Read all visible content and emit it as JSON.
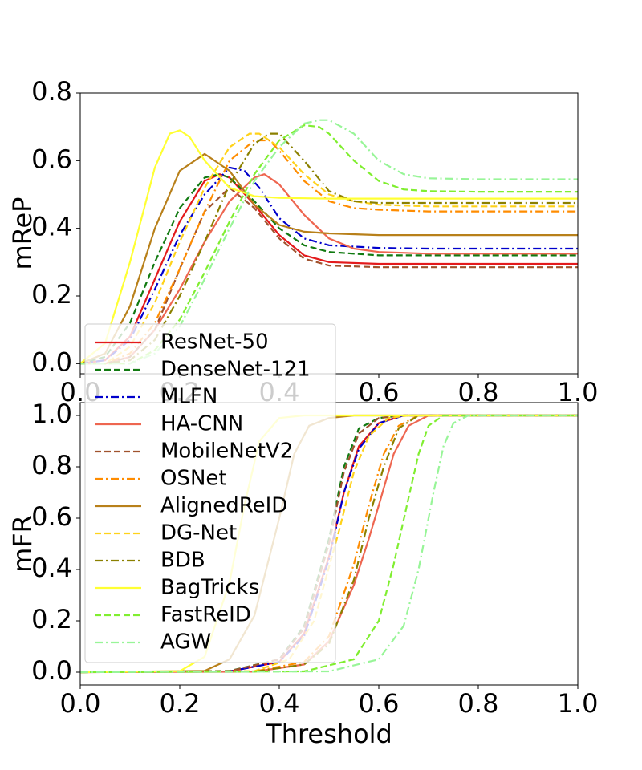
{
  "chart_data": [
    {
      "type": "line",
      "id": "top",
      "xlabel": "",
      "ylabel": "mReP",
      "xlim": [
        0.0,
        1.0
      ],
      "ylim": [
        -0.03,
        0.8
      ],
      "xticks": [
        "0.0",
        "0.2",
        "0.4",
        "0.6",
        "0.8",
        "1.0"
      ],
      "yticks": [
        "0.0",
        "0.2",
        "0.4",
        "0.6",
        "0.8"
      ],
      "legend": "lower-left",
      "series": [
        {
          "name": "ResNet-50",
          "color": "#e31a1c",
          "dash": "solid",
          "x": [
            0,
            0.05,
            0.1,
            0.15,
            0.2,
            0.25,
            0.28,
            0.3,
            0.35,
            0.4,
            0.45,
            0.5,
            0.6,
            0.7,
            1.0
          ],
          "y": [
            0,
            0.01,
            0.08,
            0.25,
            0.42,
            0.54,
            0.56,
            0.55,
            0.47,
            0.38,
            0.32,
            0.3,
            0.295,
            0.295,
            0.295
          ]
        },
        {
          "name": "DenseNet-121",
          "color": "#117a11",
          "dash": "dashed",
          "x": [
            0,
            0.05,
            0.1,
            0.15,
            0.2,
            0.25,
            0.28,
            0.3,
            0.35,
            0.4,
            0.45,
            0.5,
            0.6,
            0.7,
            1.0
          ],
          "y": [
            0,
            0.02,
            0.12,
            0.3,
            0.46,
            0.55,
            0.56,
            0.55,
            0.48,
            0.4,
            0.35,
            0.33,
            0.32,
            0.32,
            0.32
          ]
        },
        {
          "name": "MLFN",
          "color": "#0000cc",
          "dash": "dashdot",
          "x": [
            0,
            0.05,
            0.1,
            0.15,
            0.2,
            0.25,
            0.3,
            0.33,
            0.36,
            0.4,
            0.45,
            0.5,
            0.6,
            0.7,
            1.0
          ],
          "y": [
            0,
            0.01,
            0.07,
            0.22,
            0.38,
            0.5,
            0.58,
            0.57,
            0.52,
            0.43,
            0.37,
            0.35,
            0.342,
            0.34,
            0.34
          ]
        },
        {
          "name": "HA-CNN",
          "color": "#ee6650",
          "dash": "solid",
          "x": [
            0,
            0.05,
            0.1,
            0.15,
            0.2,
            0.25,
            0.3,
            0.35,
            0.37,
            0.4,
            0.45,
            0.5,
            0.55,
            0.6,
            0.7,
            1.0
          ],
          "y": [
            0,
            0.0,
            0.02,
            0.1,
            0.22,
            0.36,
            0.48,
            0.55,
            0.56,
            0.53,
            0.44,
            0.37,
            0.34,
            0.33,
            0.325,
            0.325
          ]
        },
        {
          "name": "MobileNetV2",
          "color": "#a0522d",
          "dash": "dashed",
          "x": [
            0,
            0.05,
            0.1,
            0.15,
            0.2,
            0.25,
            0.3,
            0.35,
            0.4,
            0.45,
            0.5,
            0.6,
            0.7,
            1.0
          ],
          "y": [
            0,
            0.0,
            0.02,
            0.1,
            0.28,
            0.45,
            0.52,
            0.46,
            0.37,
            0.31,
            0.29,
            0.285,
            0.285,
            0.285
          ]
        },
        {
          "name": "OSNet",
          "color": "#ff8c00",
          "dash": "dashdot",
          "x": [
            0,
            0.05,
            0.1,
            0.15,
            0.2,
            0.25,
            0.3,
            0.35,
            0.38,
            0.4,
            0.45,
            0.5,
            0.55,
            0.6,
            0.7,
            1.0
          ],
          "y": [
            0,
            0.0,
            0.03,
            0.12,
            0.28,
            0.45,
            0.6,
            0.66,
            0.66,
            0.63,
            0.54,
            0.48,
            0.46,
            0.455,
            0.45,
            0.45
          ]
        },
        {
          "name": "AlignedReID",
          "color": "#b8801a",
          "dash": "solid",
          "x": [
            0,
            0.05,
            0.1,
            0.15,
            0.2,
            0.25,
            0.3,
            0.35,
            0.4,
            0.45,
            0.5,
            0.6,
            0.7,
            1.0
          ],
          "y": [
            0,
            0.03,
            0.17,
            0.4,
            0.57,
            0.62,
            0.57,
            0.47,
            0.41,
            0.39,
            0.385,
            0.38,
            0.38,
            0.38
          ]
        },
        {
          "name": "DG-Net",
          "color": "#ffd21a",
          "dash": "dashed",
          "x": [
            0,
            0.05,
            0.1,
            0.15,
            0.2,
            0.25,
            0.3,
            0.34,
            0.36,
            0.4,
            0.45,
            0.5,
            0.55,
            0.6,
            0.7,
            1.0
          ],
          "y": [
            0,
            0.0,
            0.05,
            0.18,
            0.36,
            0.52,
            0.64,
            0.68,
            0.68,
            0.64,
            0.56,
            0.5,
            0.48,
            0.47,
            0.465,
            0.465
          ]
        },
        {
          "name": "BDB",
          "color": "#8b8000",
          "dash": "dashdot",
          "x": [
            0,
            0.05,
            0.1,
            0.15,
            0.2,
            0.25,
            0.3,
            0.35,
            0.38,
            0.4,
            0.45,
            0.5,
            0.55,
            0.6,
            0.7,
            1.0
          ],
          "y": [
            0,
            0.0,
            0.01,
            0.07,
            0.2,
            0.36,
            0.53,
            0.65,
            0.68,
            0.68,
            0.6,
            0.51,
            0.48,
            0.475,
            0.475,
            0.475
          ]
        },
        {
          "name": "BagTricks",
          "color": "#ffff33",
          "dash": "solid",
          "x": [
            0,
            0.05,
            0.1,
            0.15,
            0.18,
            0.2,
            0.22,
            0.25,
            0.3,
            0.35,
            0.4,
            0.5,
            0.6,
            0.7,
            1.0
          ],
          "y": [
            0,
            0.06,
            0.3,
            0.58,
            0.68,
            0.69,
            0.67,
            0.6,
            0.52,
            0.495,
            0.49,
            0.488,
            0.488,
            0.488,
            0.488
          ]
        },
        {
          "name": "FastReID",
          "color": "#80ee30",
          "dash": "dashed",
          "x": [
            0,
            0.05,
            0.1,
            0.15,
            0.2,
            0.25,
            0.3,
            0.35,
            0.4,
            0.45,
            0.48,
            0.5,
            0.55,
            0.6,
            0.65,
            0.7,
            0.8,
            1.0
          ],
          "y": [
            0,
            0.0,
            0.0,
            0.04,
            0.13,
            0.27,
            0.42,
            0.56,
            0.66,
            0.705,
            0.7,
            0.68,
            0.6,
            0.54,
            0.515,
            0.51,
            0.508,
            0.508
          ]
        },
        {
          "name": "AGW",
          "color": "#98f598",
          "dash": "dashdot",
          "x": [
            0,
            0.05,
            0.1,
            0.15,
            0.2,
            0.25,
            0.3,
            0.35,
            0.4,
            0.45,
            0.48,
            0.5,
            0.55,
            0.6,
            0.65,
            0.7,
            0.8,
            1.0
          ],
          "y": [
            0,
            0.0,
            0.0,
            0.03,
            0.11,
            0.25,
            0.4,
            0.54,
            0.64,
            0.71,
            0.72,
            0.72,
            0.68,
            0.6,
            0.56,
            0.548,
            0.545,
            0.545
          ]
        }
      ]
    },
    {
      "type": "line",
      "id": "bottom",
      "xlabel": "Threshold",
      "ylabel": "mFR",
      "xlim": [
        0.0,
        1.0
      ],
      "ylim": [
        -0.05,
        1.05
      ],
      "xticks": [
        "0.0",
        "0.2",
        "0.4",
        "0.6",
        "0.8",
        "1.0"
      ],
      "yticks": [
        "0.0",
        "0.2",
        "0.4",
        "0.6",
        "0.8",
        "1.0"
      ],
      "series": [
        {
          "name": "ResNet-50",
          "color": "#e31a1c",
          "dash": "solid",
          "x": [
            0,
            0.3,
            0.4,
            0.45,
            0.5,
            0.53,
            0.56,
            0.6,
            0.65,
            1.0
          ],
          "y": [
            0,
            0.003,
            0.04,
            0.15,
            0.45,
            0.7,
            0.88,
            0.97,
            1.0,
            1.0
          ]
        },
        {
          "name": "DenseNet-121",
          "color": "#117a11",
          "dash": "dashed",
          "x": [
            0,
            0.3,
            0.4,
            0.45,
            0.5,
            0.53,
            0.56,
            0.6,
            0.65,
            1.0
          ],
          "y": [
            0,
            0.005,
            0.05,
            0.18,
            0.52,
            0.8,
            0.95,
            0.99,
            1.0,
            1.0
          ]
        },
        {
          "name": "MLFN",
          "color": "#0000cc",
          "dash": "dashdot",
          "x": [
            0,
            0.3,
            0.4,
            0.45,
            0.5,
            0.53,
            0.56,
            0.6,
            0.65,
            1.0
          ],
          "y": [
            0,
            0.003,
            0.04,
            0.14,
            0.44,
            0.7,
            0.87,
            0.97,
            1.0,
            1.0
          ]
        },
        {
          "name": "HA-CNN",
          "color": "#ee6650",
          "dash": "solid",
          "x": [
            0,
            0.35,
            0.45,
            0.5,
            0.55,
            0.58,
            0.6,
            0.63,
            0.66,
            0.7,
            1.0
          ],
          "y": [
            0,
            0.002,
            0.03,
            0.12,
            0.34,
            0.52,
            0.65,
            0.85,
            0.96,
            1.0,
            1.0
          ]
        },
        {
          "name": "MobileNetV2",
          "color": "#a0522d",
          "dash": "dashed",
          "x": [
            0,
            0.3,
            0.4,
            0.45,
            0.5,
            0.53,
            0.56,
            0.6,
            0.65,
            1.0
          ],
          "y": [
            0,
            0.004,
            0.05,
            0.17,
            0.5,
            0.78,
            0.93,
            0.99,
            1.0,
            1.0
          ]
        },
        {
          "name": "OSNet",
          "color": "#ff8c00",
          "dash": "dashdot",
          "x": [
            0,
            0.35,
            0.45,
            0.5,
            0.55,
            0.58,
            0.61,
            0.64,
            0.68,
            1.0
          ],
          "y": [
            0,
            0.003,
            0.04,
            0.14,
            0.42,
            0.65,
            0.85,
            0.96,
            1.0,
            1.0
          ]
        },
        {
          "name": "AlignedReID",
          "color": "#b8801a",
          "dash": "solid",
          "x": [
            0,
            0.25,
            0.3,
            0.35,
            0.4,
            0.43,
            0.46,
            0.5,
            0.55,
            1.0
          ],
          "y": [
            0,
            0.005,
            0.05,
            0.22,
            0.6,
            0.85,
            0.96,
            0.99,
            1.0,
            1.0
          ]
        },
        {
          "name": "DG-Net",
          "color": "#ffd21a",
          "dash": "dashed",
          "x": [
            0,
            0.35,
            0.42,
            0.47,
            0.52,
            0.55,
            0.58,
            0.62,
            0.66,
            1.0
          ],
          "y": [
            0,
            0.004,
            0.05,
            0.2,
            0.55,
            0.78,
            0.92,
            0.99,
            1.0,
            1.0
          ]
        },
        {
          "name": "BDB",
          "color": "#8b8000",
          "dash": "dashdot",
          "x": [
            0,
            0.35,
            0.45,
            0.5,
            0.55,
            0.58,
            0.61,
            0.64,
            0.68,
            1.0
          ],
          "y": [
            0,
            0.002,
            0.03,
            0.11,
            0.36,
            0.6,
            0.8,
            0.95,
            1.0,
            1.0
          ]
        },
        {
          "name": "BagTricks",
          "color": "#ffff33",
          "dash": "solid",
          "x": [
            0,
            0.2,
            0.25,
            0.3,
            0.33,
            0.36,
            0.4,
            0.45,
            1.0
          ],
          "y": [
            0,
            0.004,
            0.06,
            0.35,
            0.65,
            0.9,
            0.99,
            1.0,
            1.0
          ]
        },
        {
          "name": "FastReID",
          "color": "#80ee30",
          "dash": "dashed",
          "x": [
            0,
            0.45,
            0.55,
            0.6,
            0.63,
            0.66,
            0.68,
            0.7,
            0.73,
            1.0
          ],
          "y": [
            0,
            0.003,
            0.05,
            0.2,
            0.42,
            0.68,
            0.85,
            0.96,
            1.0,
            1.0
          ]
        },
        {
          "name": "AGW",
          "color": "#98f598",
          "dash": "dashdot",
          "x": [
            0,
            0.5,
            0.6,
            0.65,
            0.68,
            0.71,
            0.73,
            0.75,
            0.78,
            1.0
          ],
          "y": [
            0,
            0.003,
            0.05,
            0.18,
            0.4,
            0.7,
            0.88,
            0.97,
            1.0,
            1.0
          ]
        }
      ]
    }
  ]
}
